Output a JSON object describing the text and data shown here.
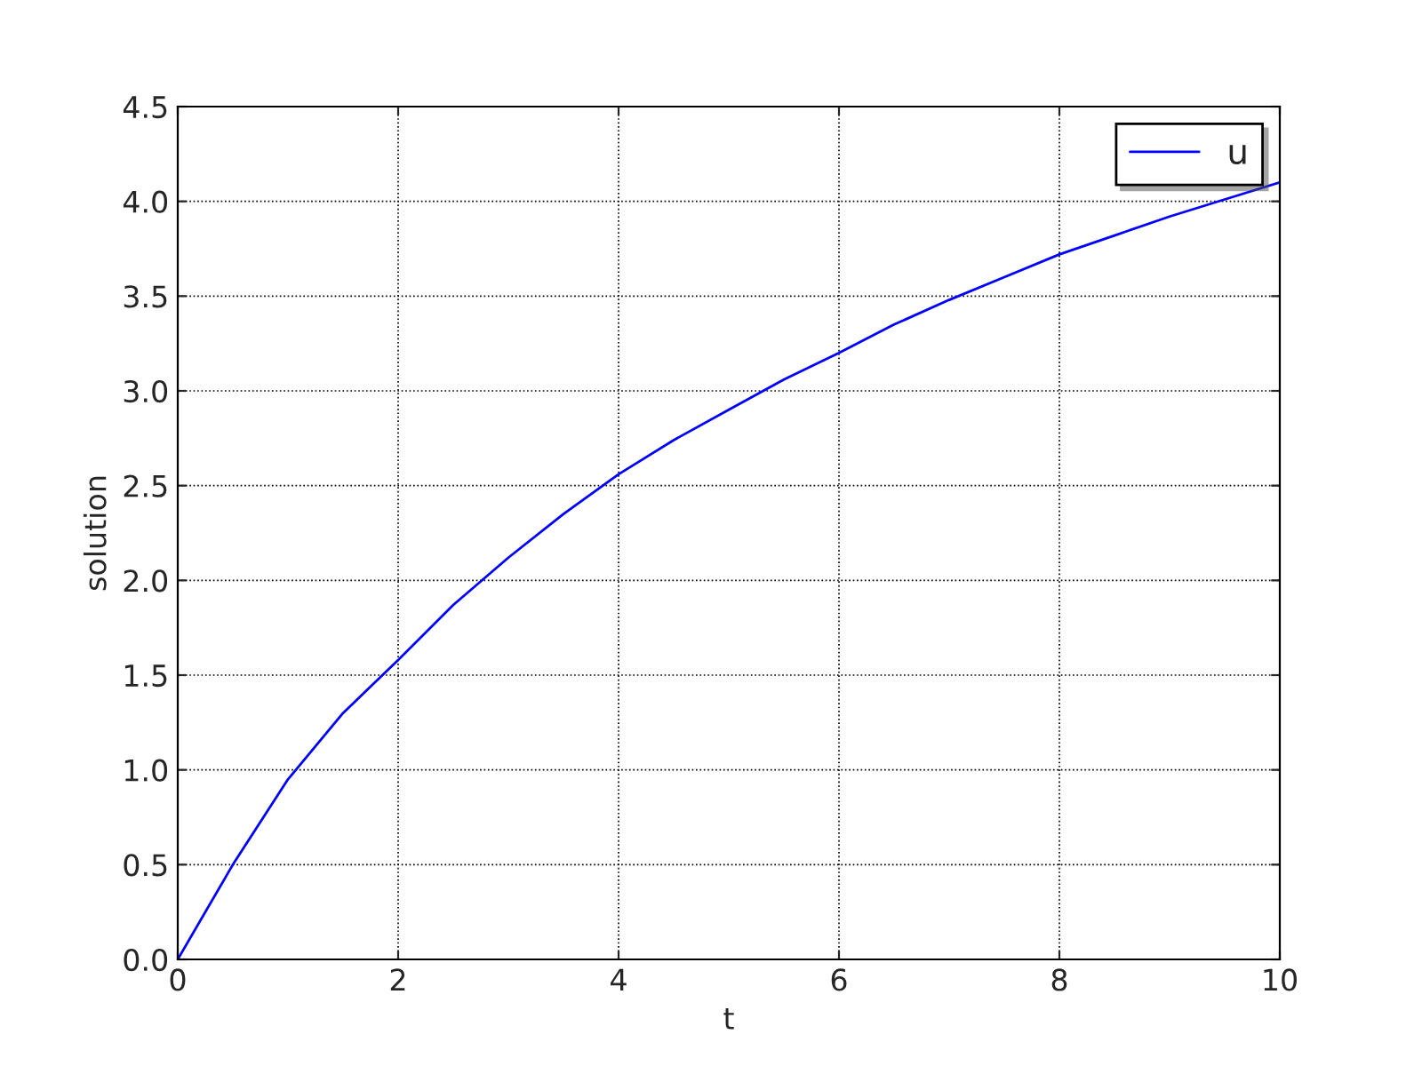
{
  "chart_data": {
    "type": "line",
    "xlabel": "t",
    "ylabel": "solution",
    "series": [
      {
        "name": "u",
        "color": "#0000ff",
        "x": [
          0,
          0.5,
          1,
          1.5,
          2,
          2.5,
          3,
          3.5,
          4,
          4.5,
          5,
          5.5,
          6,
          6.5,
          7,
          7.5,
          8,
          8.5,
          9,
          9.5,
          10
        ],
        "values": [
          0,
          0.5,
          0.95,
          1.3,
          1.58,
          1.87,
          2.12,
          2.35,
          2.56,
          2.74,
          2.9,
          3.06,
          3.2,
          3.35,
          3.48,
          3.6,
          3.72,
          3.82,
          3.92,
          4.01,
          4.1
        ]
      }
    ],
    "xlim": [
      0,
      10
    ],
    "xticks": [
      0,
      2,
      4,
      6,
      8,
      10
    ],
    "ylim": [
      0,
      4.5
    ],
    "yticks": [
      {
        "value": 0,
        "label": "0.0"
      },
      {
        "value": 0.5,
        "label": "0.5"
      },
      {
        "value": 1,
        "label": "1.0"
      },
      {
        "value": 1.5,
        "label": "1.5"
      },
      {
        "value": 2,
        "label": "2.0"
      },
      {
        "value": 2.5,
        "label": "2.5"
      },
      {
        "value": 3,
        "label": "3.0"
      },
      {
        "value": 3.5,
        "label": "3.5"
      },
      {
        "value": 4,
        "label": "4.0"
      },
      {
        "value": 4.5,
        "label": "4.5"
      }
    ],
    "grid": true,
    "legend": "top right",
    "marker": "none",
    "line_style": "solid"
  }
}
